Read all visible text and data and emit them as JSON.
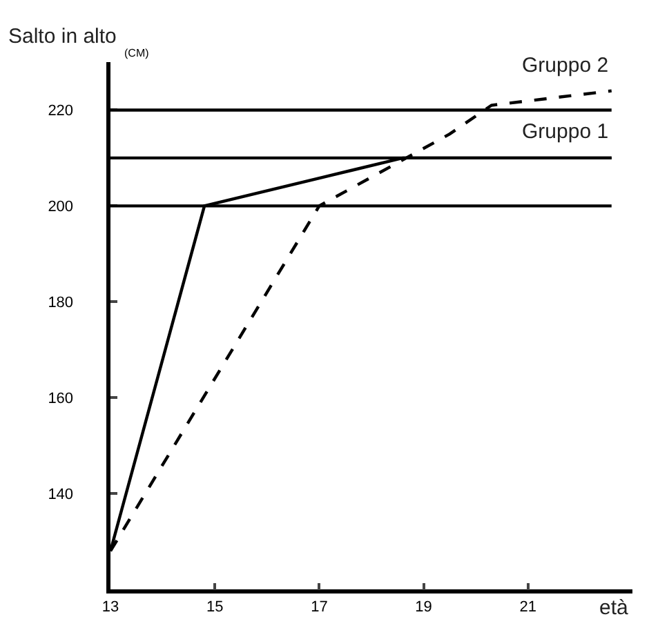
{
  "chart_data": {
    "type": "line",
    "ylabel": "Salto in alto",
    "xlabel": "età",
    "annotations": [
      "(CM)"
    ],
    "series": [
      {
        "name": "Gruppo 1",
        "color": "#000000",
        "line_style": "solid",
        "x": [
          13,
          14.8,
          18.6,
          22.6
        ],
        "values": [
          128,
          200,
          210,
          210
        ]
      },
      {
        "name": "Gruppo 2",
        "color": "#000000",
        "line_style": "dashed",
        "x": [
          13,
          17,
          19.5,
          20.3,
          22.6
        ],
        "values": [
          128,
          200,
          215,
          221,
          224
        ]
      }
    ],
    "xlim": [
      13,
      23
    ],
    "xticks": [
      13,
      15,
      17,
      19,
      21
    ],
    "ylim": [
      120,
      230
    ],
    "yticks": [
      140,
      160,
      180,
      200,
      220
    ],
    "ref_lines": [
      {
        "axis": "y",
        "value": 200,
        "color": "#000000"
      },
      {
        "axis": "y",
        "value": 210,
        "color": "#000000"
      },
      {
        "axis": "y",
        "value": 220,
        "color": "#000000"
      }
    ],
    "grid": false,
    "legend": false,
    "marker": "none"
  }
}
